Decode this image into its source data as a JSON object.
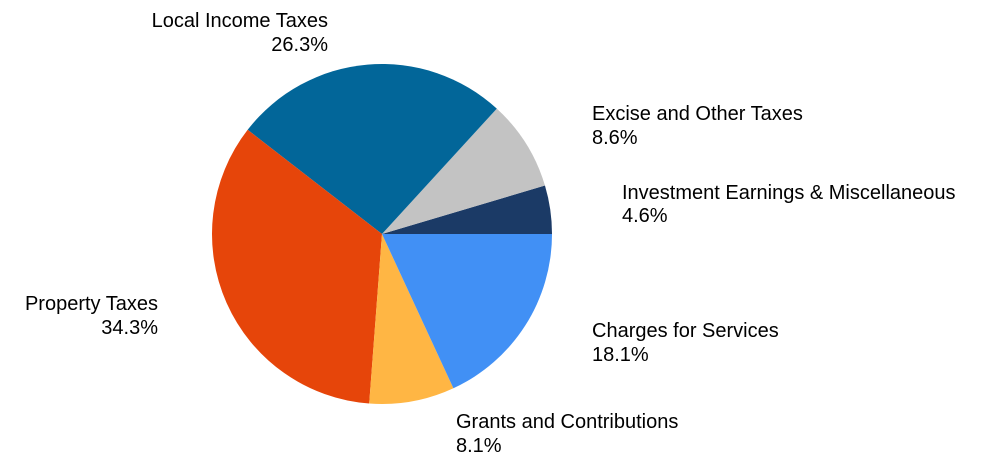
{
  "chart_data": {
    "type": "pie",
    "title": "",
    "slices": [
      {
        "label": "Investment Earnings & Miscellaneous",
        "value": 4.6,
        "value_label": "4.6%",
        "color": "#1b3a66"
      },
      {
        "label": "Excise and Other Taxes",
        "value": 8.6,
        "value_label": "8.6%",
        "color": "#c3c3c3"
      },
      {
        "label": "Local Income Taxes",
        "value": 26.3,
        "value_label": "26.3%",
        "color": "#026699"
      },
      {
        "label": "Property Taxes",
        "value": 34.3,
        "value_label": "34.3%",
        "color": "#e6450a"
      },
      {
        "label": "Grants and Contributions",
        "value": 8.1,
        "value_label": "8.1%",
        "color": "#ffb644"
      },
      {
        "label": "Charges for Services",
        "value": 18.1,
        "value_label": "18.1%",
        "color": "#4190f5"
      }
    ],
    "start_direction": "east",
    "order": "counterclockwise",
    "legend": "none"
  }
}
